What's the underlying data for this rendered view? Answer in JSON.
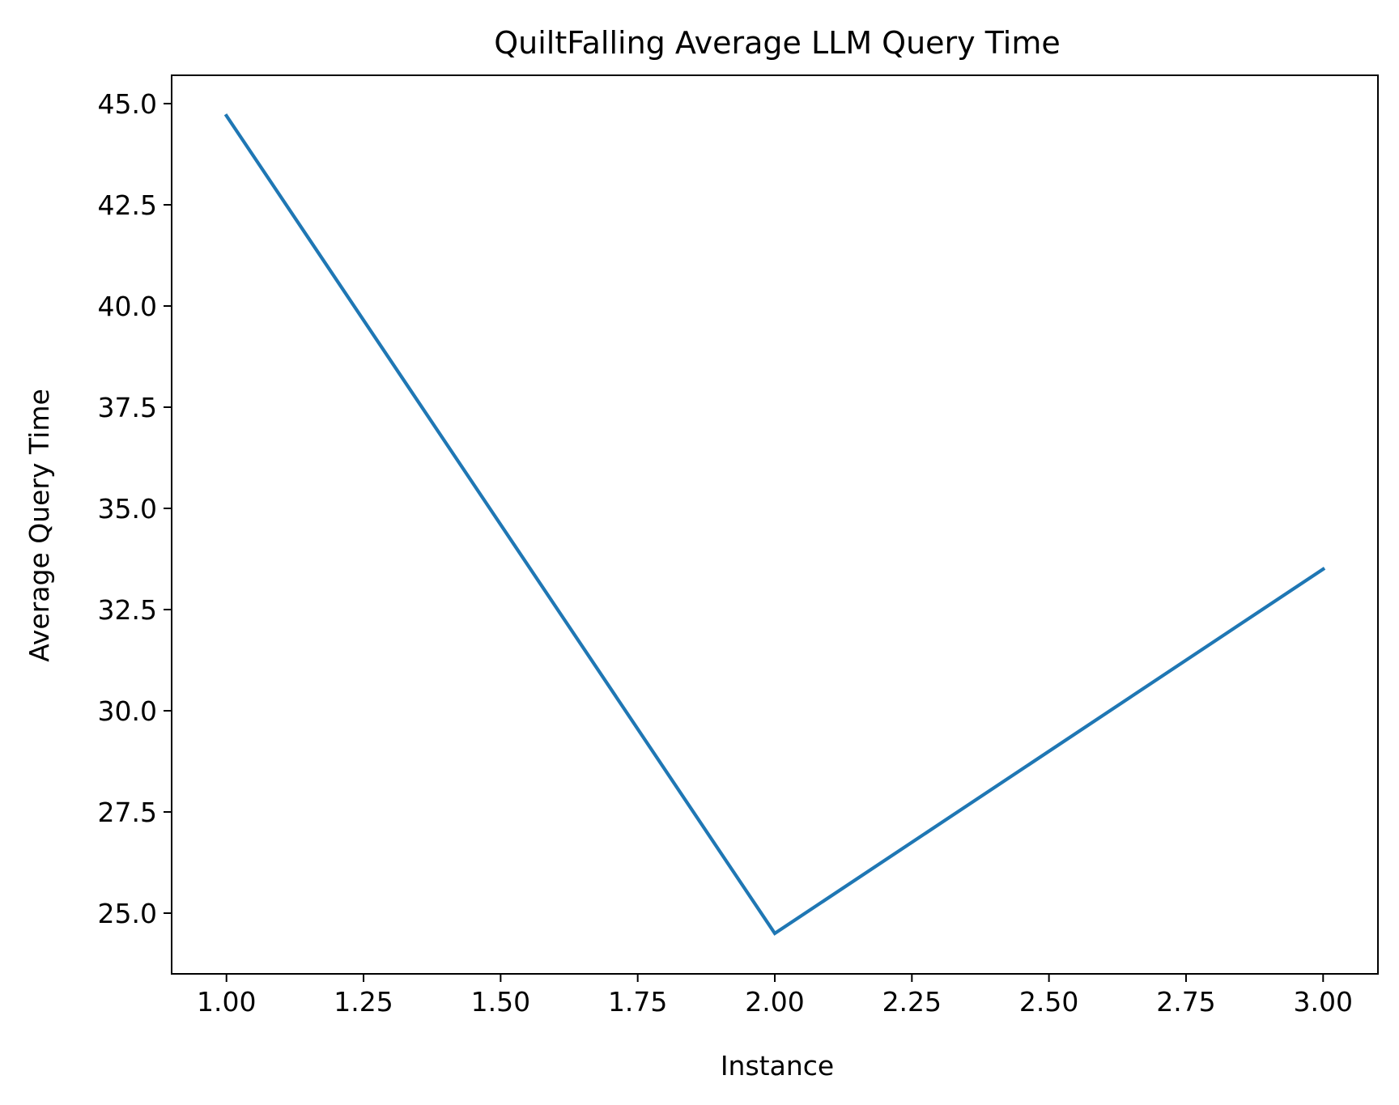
{
  "chart_data": {
    "type": "line",
    "title": "QuiltFalling Average LLM Query Time",
    "xlabel": "Instance",
    "ylabel": "Average Query Time",
    "x": [
      1,
      2,
      3
    ],
    "series": [
      {
        "values": [
          44.7,
          24.5,
          33.5
        ],
        "color": "#1f77b4"
      }
    ],
    "xlim": [
      0.9,
      3.1
    ],
    "ylim": [
      23.5,
      45.7
    ],
    "xticks": [
      "1.00",
      "1.25",
      "1.50",
      "1.75",
      "2.00",
      "2.25",
      "2.50",
      "2.75",
      "3.00"
    ],
    "yticks": [
      "25.0",
      "27.5",
      "30.0",
      "32.5",
      "35.0",
      "37.5",
      "40.0",
      "42.5",
      "45.0"
    ],
    "grid": false,
    "legend": "none"
  }
}
